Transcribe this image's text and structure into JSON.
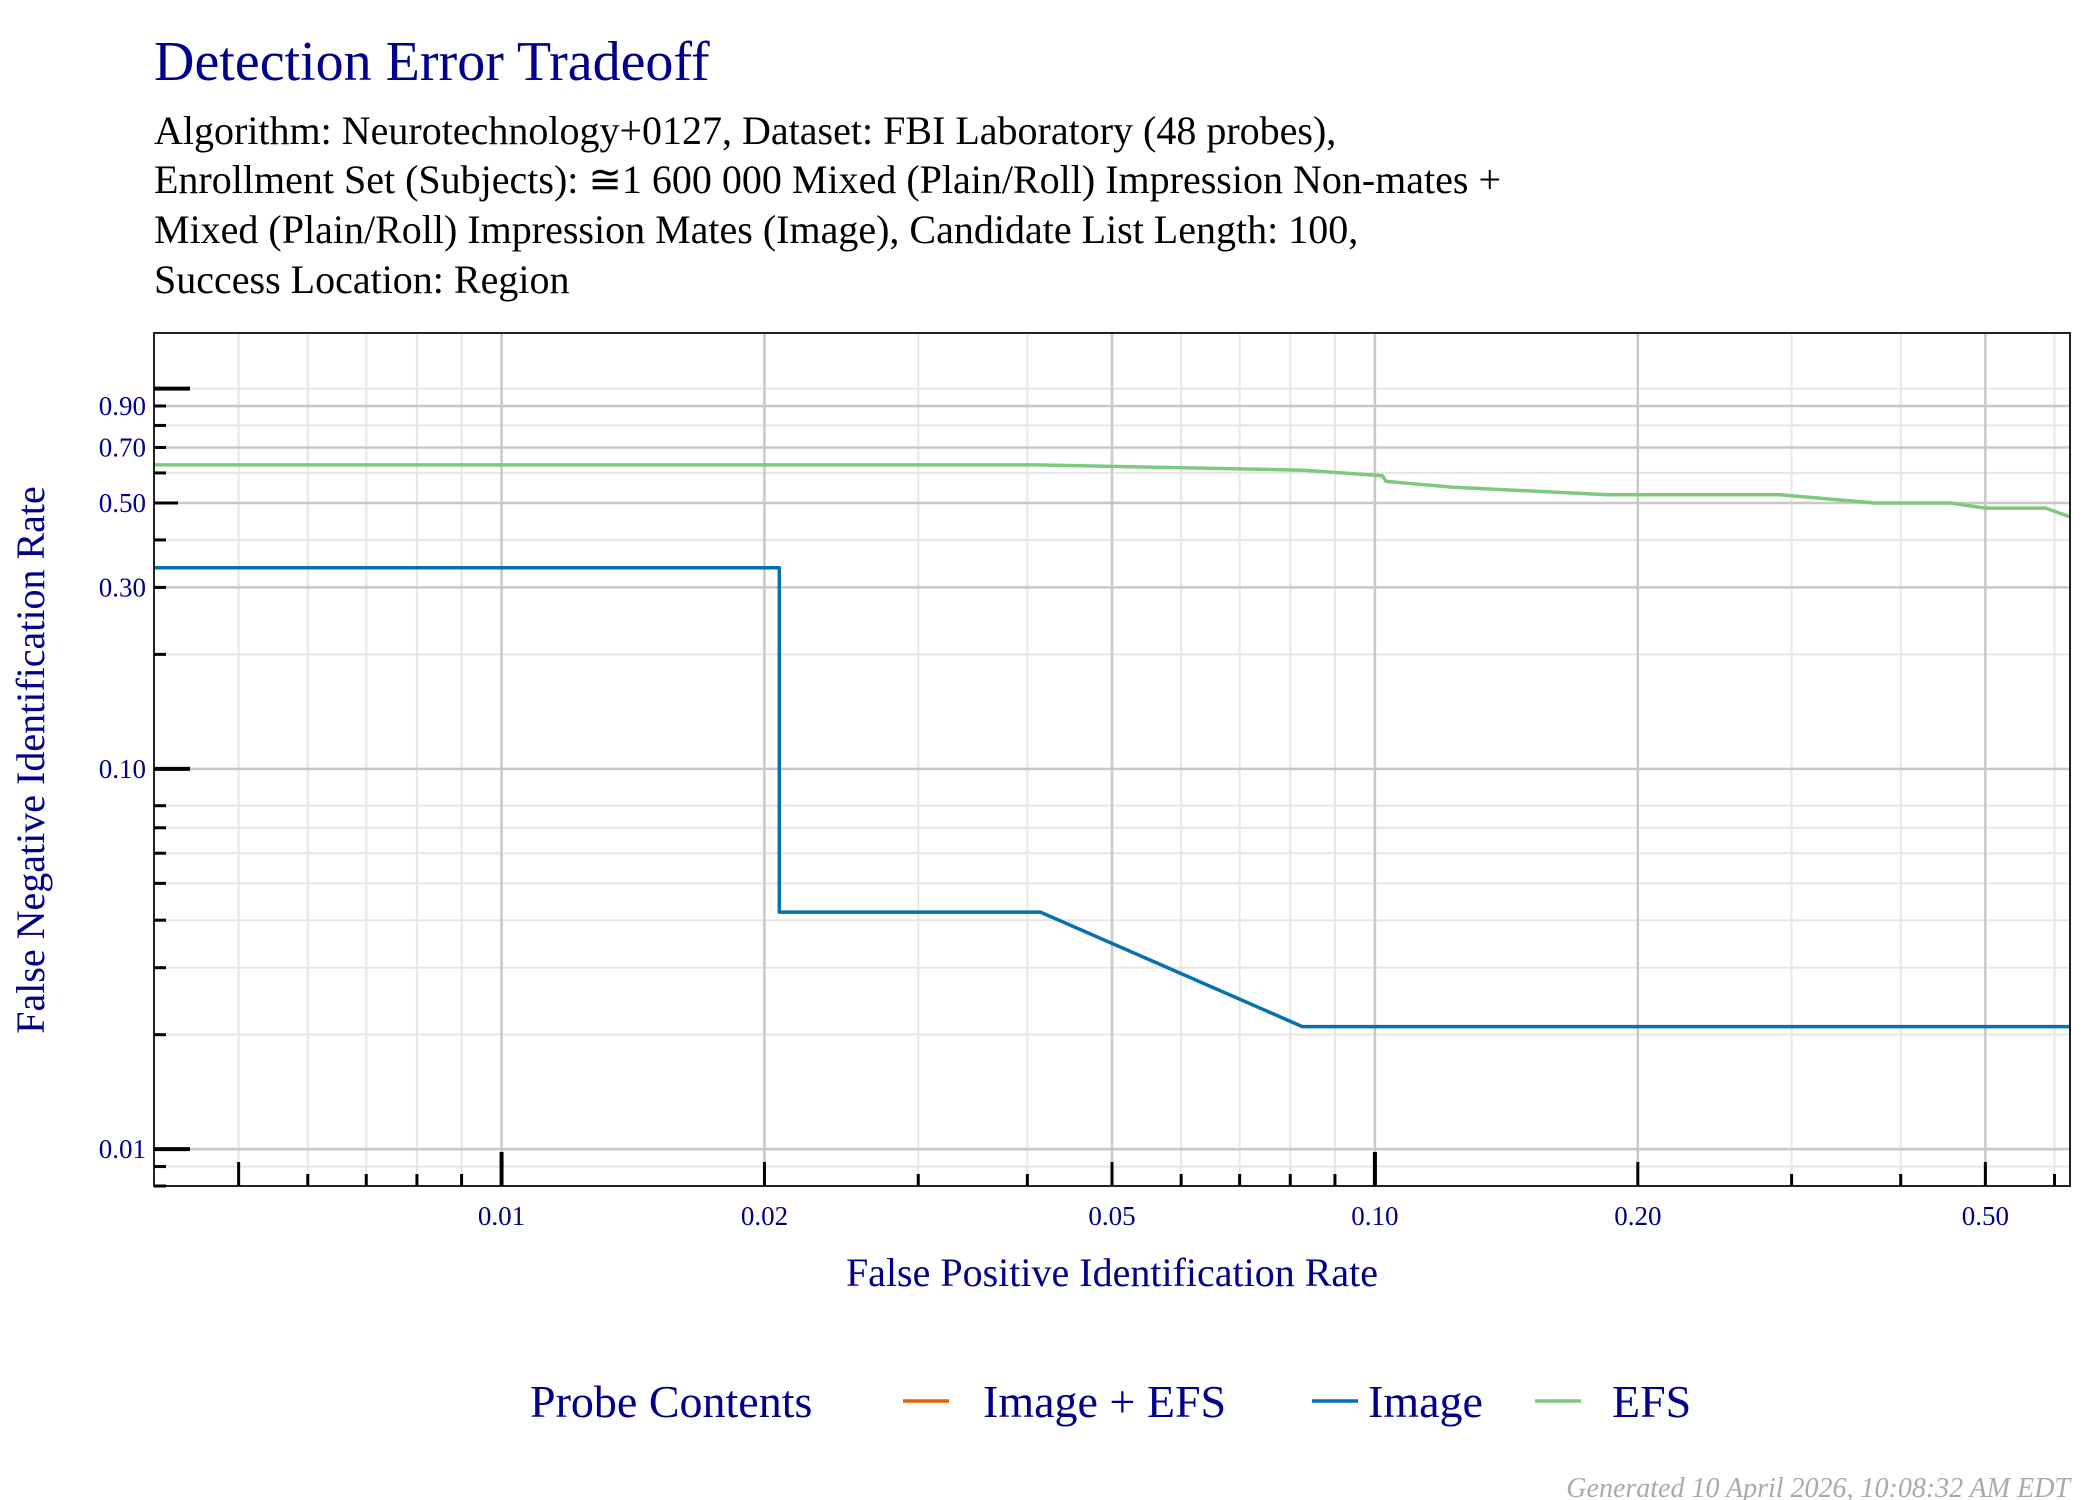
{
  "chart_data": {
    "type": "line",
    "title": "Detection Error Tradeoff",
    "subtitle_lines": [
      "Algorithm: Neurotechnology+0127, Dataset: FBI Laboratory (48 probes),",
      "Enrollment Set (Subjects): ≅1 600 000 Mixed (Plain/Roll) Impression Non-mates +",
      "Mixed (Plain/Roll) Impression Mates (Image), Candidate List Length: 100,",
      "Success Location: Region"
    ],
    "xlabel": "False Positive Identification Rate",
    "ylabel": "False Negative Identification Rate",
    "xscale": "log",
    "yscale": "log",
    "xlim": [
      0.004,
      0.625
    ],
    "ylim": [
      0.008,
      1.4
    ],
    "xticks": [
      0.01,
      0.02,
      0.05,
      0.1,
      0.2,
      0.5
    ],
    "xtick_labels": [
      "0.01",
      "0.02",
      "0.05",
      "0.10",
      "0.20",
      "0.50"
    ],
    "yticks": [
      0.01,
      0.1,
      0.3,
      0.5,
      0.7,
      0.9
    ],
    "ytick_labels": [
      "0.01",
      "0.10",
      "0.30",
      "0.50",
      "0.70",
      "0.90"
    ],
    "grid": true,
    "legend": {
      "title": "Probe Contents",
      "placement": "bottom"
    },
    "series": [
      {
        "name": "Image + EFS",
        "color": "#e66101",
        "x": [],
        "y": []
      },
      {
        "name": "Image",
        "color": "#0571b0",
        "x": [
          0.004,
          0.0208,
          0.0208,
          0.0414,
          0.0826,
          0.625
        ],
        "y": [
          0.338,
          0.338,
          0.042,
          0.042,
          0.021,
          0.021
        ]
      },
      {
        "name": "EFS",
        "color": "#7fc97f",
        "x": [
          0.004,
          0.041,
          0.083,
          0.102,
          0.103,
          0.123,
          0.185,
          0.291,
          0.374,
          0.456,
          0.5,
          0.586,
          0.625
        ],
        "y": [
          0.63,
          0.63,
          0.61,
          0.59,
          0.57,
          0.55,
          0.526,
          0.526,
          0.5,
          0.5,
          0.485,
          0.485,
          0.46
        ]
      }
    ]
  },
  "footer": "Generated 10 April 2026, 10:08:32 AM EDT"
}
